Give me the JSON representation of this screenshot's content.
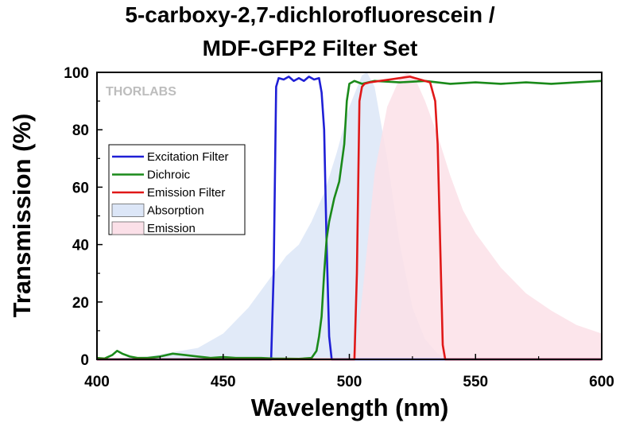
{
  "chart_data": {
    "type": "line",
    "title_line1": "5-carboxy-2,7-dichlorofluorescein /",
    "title_line2": "MDF-GFP2 Filter Set",
    "xlabel": "Wavelength (nm)",
    "ylabel": "Transmission (%)",
    "xlim": [
      400,
      600
    ],
    "ylim": [
      0,
      100
    ],
    "xticks": [
      400,
      450,
      500,
      550,
      600
    ],
    "yticks": [
      0,
      20,
      40,
      60,
      80,
      100
    ],
    "watermark": "THORLABS",
    "legend_position": "left-middle",
    "series": [
      {
        "name": "Excitation Filter",
        "style": "line",
        "color": "#1f1fd6",
        "x": [
          400,
          469,
          470,
          471,
          472,
          474,
          476,
          478,
          480,
          482,
          484,
          486,
          488,
          489,
          490,
          491,
          492,
          493,
          600
        ],
        "y": [
          0,
          0,
          30,
          95,
          98,
          97.5,
          98.5,
          97,
          98,
          97,
          98.5,
          97.5,
          98,
          93,
          80,
          40,
          8,
          0,
          0
        ]
      },
      {
        "name": "Dichroic",
        "style": "line",
        "color": "#1a8a1a",
        "x": [
          400,
          403,
          406,
          408,
          410,
          413,
          416,
          420,
          425,
          430,
          435,
          440,
          445,
          450,
          455,
          460,
          465,
          470,
          480,
          485,
          487,
          488,
          489,
          490,
          491,
          492,
          494,
          496,
          498,
          499,
          500,
          502,
          505,
          510,
          520,
          530,
          540,
          550,
          560,
          570,
          580,
          590,
          600
        ],
        "y": [
          0.5,
          0.3,
          1.5,
          3,
          2,
          1,
          0.5,
          0.5,
          1,
          2,
          1.5,
          1,
          0.5,
          0.8,
          0.5,
          0.5,
          0.5,
          0.3,
          0.2,
          0.5,
          3,
          8,
          15,
          30,
          42,
          48,
          56,
          62,
          75,
          90,
          96,
          97,
          96,
          97,
          96.5,
          97,
          96,
          96.5,
          96,
          96.5,
          96,
          96.5,
          97
        ]
      },
      {
        "name": "Emission Filter",
        "style": "line",
        "color": "#e01818",
        "x": [
          400,
          502,
          503,
          504,
          505,
          506,
          508,
          512,
          516,
          520,
          524,
          528,
          532,
          534,
          535,
          536,
          537,
          538,
          600
        ],
        "y": [
          0,
          0,
          30,
          90,
          95,
          96,
          96.5,
          97,
          97.5,
          98,
          98.5,
          97.5,
          96.5,
          90,
          75,
          40,
          5,
          0,
          0
        ]
      },
      {
        "name": "Absorption",
        "style": "area",
        "color": "#dce6f7",
        "x": [
          400,
          420,
          440,
          450,
          460,
          470,
          475,
          480,
          485,
          490,
          495,
          500,
          505,
          507,
          510,
          515,
          520,
          525,
          530,
          535,
          540
        ],
        "y": [
          0,
          1,
          4,
          9,
          18,
          30,
          36,
          40,
          48,
          58,
          72,
          88,
          99,
          100,
          95,
          70,
          40,
          18,
          7,
          2,
          0
        ]
      },
      {
        "name": "Emission",
        "style": "area",
        "color": "#fbe0e8",
        "x": [
          500,
          503,
          506,
          510,
          515,
          520,
          523,
          526,
          530,
          535,
          540,
          545,
          550,
          560,
          570,
          580,
          590,
          600
        ],
        "y": [
          0,
          5,
          30,
          65,
          88,
          98,
          100,
          98,
          90,
          78,
          64,
          52,
          44,
          32,
          23,
          17,
          12,
          9
        ]
      }
    ]
  }
}
